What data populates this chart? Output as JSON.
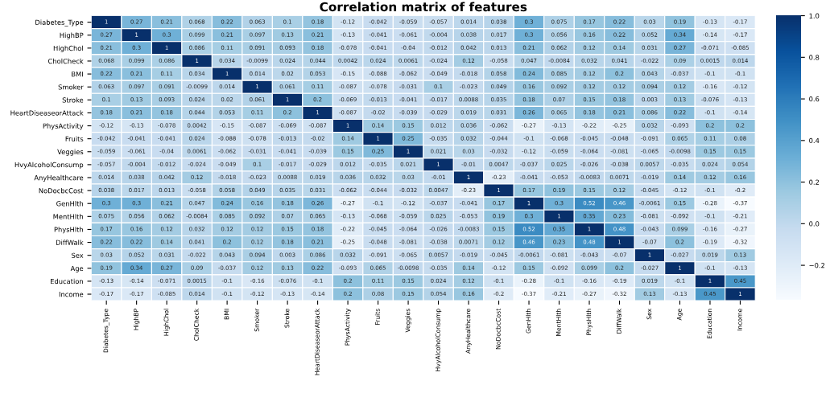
{
  "chart_data": {
    "type": "heatmap",
    "title": "Correlation matrix of features",
    "categories": [
      "Diabetes_Type",
      "HighBP",
      "HighChol",
      "CholCheck",
      "BMI",
      "Smoker",
      "Stroke",
      "HeartDiseaseorAttack",
      "PhysActivity",
      "Fruits",
      "Veggies",
      "HvyAlcoholConsump",
      "AnyHealthcare",
      "NoDocbcCost",
      "GenHlth",
      "MentHlth",
      "PhysHlth",
      "DiffWalk",
      "Sex",
      "Age",
      "Education",
      "Income"
    ],
    "y_categories": [
      "Diabetes_Type",
      "HighBP",
      "HighChol",
      "CholCheck",
      "BMI",
      "Smoker",
      "Stroke",
      "HeartDiseaseorAttack",
      "PhysActivity",
      "Fruits",
      "Veggies",
      "HvyAlcoholConsump",
      "AnyHealthcare",
      "NoDocbcCost",
      "GenHlth",
      "MentHlth",
      "PhysHlth",
      "DiffWalk",
      "Sex",
      "Age",
      "Education",
      "Income"
    ],
    "cells": [
      [
        1,
        0.27,
        0.21,
        0.068,
        0.22,
        0.063,
        0.1,
        0.18,
        -0.12,
        -0.042,
        -0.059,
        -0.057,
        0.014,
        0.038,
        0.3,
        0.075,
        0.17,
        0.22,
        0.03,
        0.19,
        -0.13,
        -0.17
      ],
      [
        0.27,
        1,
        0.3,
        0.099,
        0.21,
        0.097,
        0.13,
        0.21,
        -0.13,
        -0.041,
        -0.061,
        -0.004,
        0.038,
        0.017,
        0.3,
        0.056,
        0.16,
        0.22,
        0.052,
        0.34,
        -0.14,
        -0.17
      ],
      [
        0.21,
        0.3,
        1,
        0.086,
        0.11,
        0.091,
        0.093,
        0.18,
        -0.078,
        -0.041,
        -0.04,
        -0.012,
        0.042,
        0.013,
        0.21,
        0.062,
        0.12,
        0.14,
        0.031,
        0.27,
        -0.071,
        -0.085
      ],
      [
        0.068,
        0.099,
        0.086,
        1,
        0.034,
        -0.0099,
        0.024,
        0.044,
        0.0042,
        0.024,
        0.0061,
        -0.024,
        0.12,
        -0.058,
        0.047,
        -0.0084,
        0.032,
        0.041,
        -0.022,
        0.09,
        0.0015,
        0.014
      ],
      [
        0.22,
        0.21,
        0.11,
        0.034,
        1,
        0.014,
        0.02,
        0.053,
        -0.15,
        -0.088,
        -0.062,
        -0.049,
        -0.018,
        0.058,
        0.24,
        0.085,
        0.12,
        0.2,
        0.043,
        -0.037,
        -0.1,
        -0.1
      ],
      [
        0.063,
        0.097,
        0.091,
        -0.0099,
        0.014,
        1,
        0.061,
        0.11,
        -0.087,
        -0.078,
        -0.031,
        0.1,
        -0.023,
        0.049,
        0.16,
        0.092,
        0.12,
        0.12,
        0.094,
        0.12,
        -0.16,
        -0.12
      ],
      [
        0.1,
        0.13,
        0.093,
        0.024,
        0.02,
        0.061,
        1,
        0.2,
        -0.069,
        -0.013,
        -0.041,
        -0.017,
        0.0088,
        0.035,
        0.18,
        0.07,
        0.15,
        0.18,
        0.003,
        0.13,
        -0.076,
        -0.13
      ],
      [
        0.18,
        0.21,
        0.18,
        0.044,
        0.053,
        0.11,
        0.2,
        1,
        -0.087,
        -0.02,
        -0.039,
        -0.029,
        0.019,
        0.031,
        0.26,
        0.065,
        0.18,
        0.21,
        0.086,
        0.22,
        -0.1,
        -0.14
      ],
      [
        -0.12,
        -0.13,
        -0.078,
        0.0042,
        -0.15,
        -0.087,
        -0.069,
        -0.087,
        1,
        0.14,
        0.15,
        0.012,
        0.036,
        -0.062,
        -0.27,
        -0.13,
        -0.22,
        -0.25,
        0.032,
        -0.093,
        0.2,
        0.2
      ],
      [
        -0.042,
        -0.041,
        -0.041,
        0.024,
        -0.088,
        -0.078,
        -0.013,
        -0.02,
        0.14,
        1,
        0.25,
        -0.035,
        0.032,
        -0.044,
        -0.1,
        -0.068,
        -0.045,
        -0.048,
        -0.091,
        0.065,
        0.11,
        0.08
      ],
      [
        -0.059,
        -0.061,
        -0.04,
        0.0061,
        -0.062,
        -0.031,
        -0.041,
        -0.039,
        0.15,
        0.25,
        1,
        0.021,
        0.03,
        -0.032,
        -0.12,
        -0.059,
        -0.064,
        -0.081,
        -0.065,
        -0.0098,
        0.15,
        0.15
      ],
      [
        -0.057,
        -0.004,
        -0.012,
        -0.024,
        -0.049,
        0.1,
        -0.017,
        -0.029,
        0.012,
        -0.035,
        0.021,
        1,
        -0.01,
        0.0047,
        -0.037,
        0.025,
        -0.026,
        -0.038,
        0.0057,
        -0.035,
        0.024,
        0.054
      ],
      [
        0.014,
        0.038,
        0.042,
        0.12,
        -0.018,
        -0.023,
        0.0088,
        0.019,
        0.036,
        0.032,
        0.03,
        -0.01,
        1,
        -0.23,
        -0.041,
        -0.053,
        -0.0083,
        0.0071,
        -0.019,
        0.14,
        0.12,
        0.16
      ],
      [
        0.038,
        0.017,
        0.013,
        -0.058,
        0.058,
        0.049,
        0.035,
        0.031,
        -0.062,
        -0.044,
        -0.032,
        0.0047,
        -0.23,
        1,
        0.17,
        0.19,
        0.15,
        0.12,
        -0.045,
        -0.12,
        -0.1,
        -0.2
      ],
      [
        0.3,
        0.3,
        0.21,
        0.047,
        0.24,
        0.16,
        0.18,
        0.26,
        -0.27,
        -0.1,
        -0.12,
        -0.037,
        -0.041,
        0.17,
        1,
        0.3,
        0.52,
        0.46,
        -0.0061,
        0.15,
        -0.28,
        -0.37
      ],
      [
        0.075,
        0.056,
        0.062,
        -0.0084,
        0.085,
        0.092,
        0.07,
        0.065,
        -0.13,
        -0.068,
        -0.059,
        0.025,
        -0.053,
        0.19,
        0.3,
        1,
        0.35,
        0.23,
        -0.081,
        -0.092,
        -0.1,
        -0.21
      ],
      [
        0.17,
        0.16,
        0.12,
        0.032,
        0.12,
        0.12,
        0.15,
        0.18,
        -0.22,
        -0.045,
        -0.064,
        -0.026,
        -0.0083,
        0.15,
        0.52,
        0.35,
        1,
        0.48,
        -0.043,
        0.099,
        -0.16,
        -0.27
      ],
      [
        0.22,
        0.22,
        0.14,
        0.041,
        0.2,
        0.12,
        0.18,
        0.21,
        -0.25,
        -0.048,
        -0.081,
        -0.038,
        0.0071,
        0.12,
        0.46,
        0.23,
        0.48,
        1,
        -0.07,
        0.2,
        -0.19,
        -0.32
      ],
      [
        0.03,
        0.052,
        0.031,
        -0.022,
        0.043,
        0.094,
        0.003,
        0.086,
        0.032,
        -0.091,
        -0.065,
        0.0057,
        -0.019,
        -0.045,
        -0.0061,
        -0.081,
        -0.043,
        -0.07,
        1,
        -0.027,
        0.019,
        0.13
      ],
      [
        0.19,
        0.34,
        0.27,
        0.09,
        -0.037,
        0.12,
        0.13,
        0.22,
        -0.093,
        0.065,
        -0.0098,
        -0.035,
        0.14,
        -0.12,
        0.15,
        -0.092,
        0.099,
        0.2,
        -0.027,
        1,
        -0.1,
        -0.13
      ],
      [
        -0.13,
        -0.14,
        -0.071,
        0.0015,
        -0.1,
        -0.16,
        -0.076,
        -0.1,
        0.2,
        0.11,
        0.15,
        0.024,
        0.12,
        -0.1,
        -0.28,
        -0.1,
        -0.16,
        -0.19,
        0.019,
        -0.1,
        1,
        0.45
      ],
      [
        -0.17,
        -0.17,
        -0.085,
        0.014,
        -0.1,
        -0.12,
        -0.13,
        -0.14,
        0.2,
        0.08,
        0.15,
        0.054,
        0.16,
        -0.2,
        -0.37,
        -0.21,
        -0.27,
        -0.32,
        0.13,
        -0.13,
        0.45,
        1
      ]
    ],
    "data_labels": true,
    "clim": [
      -0.37,
      1
    ],
    "cticks": [
      {
        "value": -0.2,
        "label": "−0.2"
      },
      {
        "value": 0,
        "label": "0.0"
      },
      {
        "value": 0.2,
        "label": "0.2"
      },
      {
        "value": 0.4,
        "label": "0.4"
      },
      {
        "value": 0.6,
        "label": "0.6"
      },
      {
        "value": 0.8,
        "label": "0.8"
      },
      {
        "value": 1,
        "label": "1.0"
      }
    ]
  }
}
